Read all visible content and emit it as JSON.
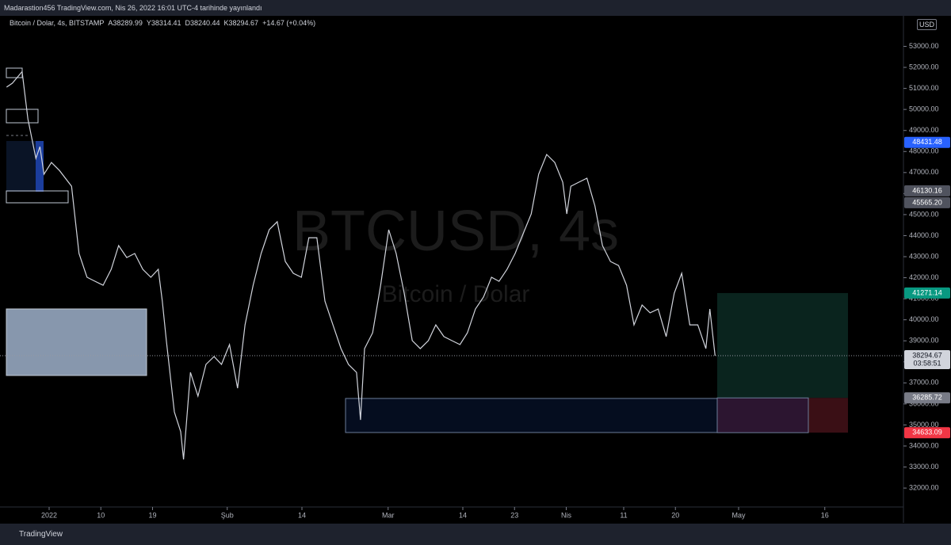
{
  "chart_data": {
    "type": "line",
    "subtitle": "Madarastion456 TradingView.com, Nis 26, 2022 16:01 UTC-4 tarihinde yayınlandı",
    "title": "Bitcoin / Dolar, 4s, BITSTAMP",
    "ohlc": [
      "A38289.99",
      "Y38314.41",
      "D38240.44",
      "K38294.67",
      "+14.67 (+0.04%)"
    ],
    "watermark": [
      "BTCUSD, 4s",
      "Bitcoin / Dolar"
    ],
    "currency": "USD",
    "footer": "TradingView",
    "xlim": [
      -7.55,
      149.69
    ],
    "ylim": [
      31100,
      54450
    ],
    "xticks": [
      {
        "value": 1,
        "label": "2022"
      },
      {
        "value": 10,
        "label": "10"
      },
      {
        "value": 19,
        "label": "19"
      },
      {
        "value": 32,
        "label": "Şub"
      },
      {
        "value": 45,
        "label": "14"
      },
      {
        "value": 60,
        "label": "Mar"
      },
      {
        "value": 73,
        "label": "14"
      },
      {
        "value": 82,
        "label": "23"
      },
      {
        "value": 91,
        "label": "Nis"
      },
      {
        "value": 101,
        "label": "11"
      },
      {
        "value": 110,
        "label": "20"
      },
      {
        "value": 121,
        "label": "May"
      },
      {
        "value": 136,
        "label": "16"
      }
    ],
    "yticks": [
      {
        "value": 32000,
        "label": "32000.00"
      },
      {
        "value": 33000,
        "label": "33000.00"
      },
      {
        "value": 34000,
        "label": "34000.00"
      },
      {
        "value": 35000,
        "label": "35000.00"
      },
      {
        "value": 36000,
        "label": "36000.00"
      },
      {
        "value": 37000,
        "label": "37000.00"
      },
      {
        "value": 38000,
        "label": "38000.00"
      },
      {
        "value": 39000,
        "label": "39000.00"
      },
      {
        "value": 40000,
        "label": "40000.00"
      },
      {
        "value": 41000,
        "label": "41000.00"
      },
      {
        "value": 42000,
        "label": "42000.00"
      },
      {
        "value": 43000,
        "label": "43000.00"
      },
      {
        "value": 44000,
        "label": "44000.00"
      },
      {
        "value": 45000,
        "label": "45000.00"
      },
      {
        "value": 46000,
        "label": "46000.00"
      },
      {
        "value": 47000,
        "label": "47000.00"
      },
      {
        "value": 48000,
        "label": "48000.00"
      },
      {
        "value": 49000,
        "label": "49000.00"
      },
      {
        "value": 50000,
        "label": "50000.00"
      },
      {
        "value": 51000,
        "label": "51000.00"
      },
      {
        "value": 52000,
        "label": "52000.00"
      },
      {
        "value": 53000,
        "label": "53000.00"
      }
    ],
    "x": [
      -6.4,
      -5.4,
      -3.7,
      -2.7,
      -1.3,
      -0.6,
      0.1,
      1.4,
      2.8,
      4.9,
      6.2,
      7.6,
      9.0,
      10.4,
      11.8,
      13.1,
      14.5,
      15.9,
      17.3,
      18.7,
      20.0,
      20.7,
      21.4,
      22.8,
      23.9,
      24.4,
      25.6,
      26.9,
      28.3,
      29.7,
      31.0,
      32.4,
      33.8,
      35.1,
      36.5,
      37.9,
      39.3,
      40.7,
      42.1,
      43.5,
      44.9,
      46.2,
      47.6,
      49.0,
      50.4,
      51.8,
      53.1,
      54.5,
      55.2,
      55.9,
      57.3,
      58.7,
      60.1,
      61.4,
      62.8,
      64.2,
      65.6,
      67.0,
      68.3,
      69.7,
      71.1,
      72.5,
      73.8,
      75.2,
      76.6,
      78.0,
      79.3,
      80.7,
      82.1,
      83.5,
      84.9,
      86.2,
      87.6,
      89.0,
      90.4,
      91.1,
      91.8,
      93.2,
      94.6,
      96.0,
      97.3,
      98.7,
      100.1,
      101.5,
      102.8,
      104.2,
      105.6,
      107.0,
      108.4,
      109.8,
      111.1,
      112.5,
      113.9,
      115.3,
      116.0,
      116.9
    ],
    "series": [
      {
        "name": "BTCUSD",
        "color": "#d1d4dc",
        "values": [
          51060,
          51250,
          51800,
          49550,
          47670,
          48230,
          46920,
          47480,
          47100,
          46350,
          43150,
          42020,
          41830,
          41640,
          42400,
          43530,
          42960,
          43150,
          42400,
          42020,
          42400,
          40890,
          39010,
          35620,
          34680,
          33360,
          37500,
          36370,
          37880,
          38250,
          37880,
          38820,
          36750,
          39760,
          41640,
          43150,
          44280,
          44660,
          42770,
          42210,
          42020,
          43900,
          43900,
          40890,
          39760,
          38630,
          37880,
          37500,
          35240,
          38630,
          39380,
          41640,
          44280,
          43150,
          41270,
          39010,
          38630,
          39010,
          39760,
          39200,
          39010,
          38820,
          39380,
          40510,
          41080,
          42020,
          41830,
          42400,
          43150,
          44090,
          45030,
          46920,
          47860,
          47480,
          46540,
          45030,
          46350,
          46540,
          46730,
          45410,
          43530,
          42770,
          42580,
          41640,
          39760,
          40700,
          40330,
          40510,
          39200,
          41270,
          42210,
          39760,
          39760,
          38630,
          40510,
          38294.67
        ]
      }
    ],
    "price_labels": [
      {
        "value": 48431.48,
        "label": "48431.48",
        "color": "#2962ff"
      },
      {
        "value": 46130.16,
        "label": "46130.16",
        "color": "#50535e"
      },
      {
        "value": 45565.2,
        "label": "45565.20",
        "color": "#50535e"
      },
      {
        "value": 41271.14,
        "label": "41271.14",
        "color": "#089981"
      },
      {
        "value": 38294.67,
        "label": "38294.67",
        "color": "#d1d4dc",
        "countdown": "03:58:51"
      },
      {
        "value": 36285.72,
        "label": "36285.72",
        "color": "#787b86"
      },
      {
        "value": 34633.09,
        "label": "34633.09",
        "color": "#f23645"
      }
    ]
  }
}
